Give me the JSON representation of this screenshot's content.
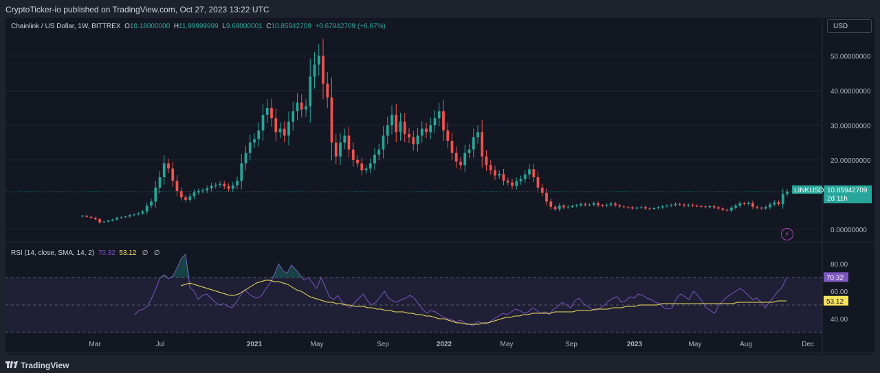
{
  "header": {
    "published": "CryptoTicker-io published on TradingView.com, Oct 27, 2023 13:22 UTC"
  },
  "legend": {
    "symbol": "Chainlink / US Dollar, 1W, BITTREX",
    "open_label": "O",
    "open": "10.18000000",
    "high_label": "H",
    "high": "11.99999999",
    "low_label": "L",
    "low": "9.69000001",
    "close_label": "C",
    "close": "10.85942709",
    "change": "+0.67942709 (+6.67%)"
  },
  "currency_button": "USD",
  "rsi_legend": {
    "label": "RSI (14, close, SMA, 14, 2)",
    "rsi": "70.32",
    "sma": "53.12",
    "extra1": "∅",
    "extra2": "∅"
  },
  "footer": {
    "brand": "TradingView"
  },
  "colors": {
    "up": "#26a69a",
    "down": "#ef5350",
    "rsi_line": "#7e57c2",
    "rsi_ma": "#f7e35a",
    "background": "#131722"
  },
  "icons": {
    "bolt": "lightning-icon",
    "logo": "tradingview-logo-icon"
  },
  "chart_data": [
    {
      "type": "candlestick",
      "series_name": "LINKUSD",
      "last_price_label": "10.85942709",
      "countdown": "2d 11h",
      "y_axis": {
        "min": -4,
        "max": 55,
        "ticks": [
          "50.00000000",
          "40.00000000",
          "30.00000000",
          "20.00000000",
          "0.00000000"
        ]
      },
      "x_tick_labels": [
        {
          "label": "Mar",
          "bold": false
        },
        {
          "label": "Jul",
          "bold": false
        },
        {
          "label": "2021",
          "bold": true
        },
        {
          "label": "May",
          "bold": false
        },
        {
          "label": "Sep",
          "bold": false
        },
        {
          "label": "2022",
          "bold": true
        },
        {
          "label": "May",
          "bold": false
        },
        {
          "label": "Sep",
          "bold": false
        },
        {
          "label": "2023",
          "bold": true
        },
        {
          "label": "May",
          "bold": false
        },
        {
          "label": "Aug",
          "bold": false
        },
        {
          "label": "Dec",
          "bold": false
        }
      ],
      "weekly_closes": [
        3.9,
        3.6,
        3.3,
        2.9,
        2.0,
        2.2,
        2.5,
        2.8,
        3.3,
        3.5,
        3.7,
        4.1,
        4.3,
        4.6,
        5.1,
        6.8,
        8.0,
        12.0,
        15.0,
        19.0,
        17.5,
        14.0,
        11.0,
        9.2,
        8.5,
        9.5,
        10.6,
        11.0,
        11.2,
        11.8,
        12.5,
        12.8,
        13.1,
        12.4,
        11.7,
        12.7,
        14.0,
        19.0,
        22.0,
        25.0,
        26.0,
        28.5,
        33.0,
        35.0,
        32.0,
        28.0,
        29.0,
        27.0,
        31.0,
        34.0,
        36.5,
        34.5,
        35.5,
        44.0,
        47.5,
        50.0,
        42.0,
        38.0,
        25.0,
        21.0,
        25.0,
        27.0,
        23.0,
        20.0,
        19.0,
        17.0,
        17.5,
        19.0,
        21.5,
        23.0,
        27.0,
        30.0,
        33.0,
        28.0,
        31.0,
        27.5,
        26.5,
        24.5,
        27.0,
        29.0,
        28.0,
        30.0,
        32.0,
        34.0,
        28.5,
        25.5,
        22.0,
        19.5,
        18.5,
        22.0,
        23.0,
        26.5,
        28.0,
        21.0,
        18.5,
        17.0,
        15.5,
        16.0,
        14.0,
        13.5,
        12.5,
        13.8,
        14.5,
        15.8,
        17.3,
        15.0,
        12.0,
        10.5,
        8.0,
        6.5,
        5.8,
        6.8,
        6.3,
        6.5,
        6.7,
        6.9,
        7.3,
        7.0,
        7.1,
        7.5,
        6.9,
        6.8,
        7.0,
        7.4,
        6.9,
        6.6,
        6.4,
        6.3,
        6.0,
        6.2,
        6.4,
        6.0,
        5.9,
        6.1,
        6.3,
        6.6,
        6.8,
        7.0,
        7.3,
        7.1,
        6.8,
        7.0,
        6.8,
        6.7,
        6.6,
        6.4,
        6.7,
        6.3,
        6.0,
        5.6,
        5.4,
        6.2,
        6.8,
        7.5,
        7.3,
        7.6,
        6.5,
        6.2,
        6.0,
        6.4,
        7.2,
        7.8,
        7.3,
        10.18,
        10.86
      ]
    },
    {
      "type": "line",
      "title": "RSI (14, close, SMA, 14, 2)",
      "y_axis": {
        "min": 24,
        "max": 88,
        "ticks": [
          "80.00",
          "60.00",
          "40.00"
        ],
        "band": [
          30,
          70
        ]
      },
      "series": [
        {
          "name": "RSI",
          "last_value": "70.32",
          "values": [
            43,
            46,
            47,
            49,
            55,
            62,
            70,
            72,
            69,
            71,
            77,
            84,
            87,
            63,
            60,
            54,
            57,
            58,
            55,
            52,
            50,
            51,
            49,
            48,
            52,
            57,
            61,
            58,
            56,
            55,
            57,
            62,
            66,
            72,
            80,
            75,
            73,
            79,
            76,
            72,
            68,
            70,
            66,
            62,
            70,
            63,
            56,
            54,
            57,
            52,
            50,
            48,
            52,
            55,
            58,
            53,
            50,
            52,
            56,
            60,
            55,
            53,
            52,
            54,
            55,
            57,
            55,
            51,
            47,
            44,
            46,
            45,
            43,
            41,
            40,
            39,
            38,
            39,
            37,
            36,
            35,
            38,
            37,
            36,
            38,
            40,
            42,
            44,
            43,
            45,
            47,
            46,
            44,
            45,
            48,
            46,
            44,
            45,
            43,
            47,
            49,
            52,
            50,
            48,
            53,
            55,
            51,
            49,
            47,
            46,
            48,
            50,
            53,
            55,
            56,
            52,
            53,
            56,
            55,
            58,
            57,
            55,
            54,
            52,
            51,
            48,
            47,
            48,
            55,
            58,
            56,
            54,
            60,
            57,
            53,
            48,
            46,
            44,
            50,
            53,
            56,
            58,
            60,
            62,
            60,
            57,
            54,
            55,
            52,
            48,
            52,
            56,
            60,
            63,
            70
          ]
        },
        {
          "name": "SMA",
          "last_value": "53.12",
          "values": [
            64,
            65,
            66,
            65,
            64,
            63,
            62,
            61,
            60,
            59,
            58,
            57,
            57,
            58,
            60,
            62,
            64,
            66,
            67,
            68,
            68,
            67,
            67,
            66,
            65,
            63,
            61,
            60,
            58,
            56,
            55,
            54,
            53,
            52,
            52,
            51,
            51,
            50,
            50,
            49,
            49,
            49,
            48,
            48,
            47,
            47,
            46,
            46,
            45,
            45,
            45,
            44,
            44,
            43,
            43,
            42,
            42,
            41,
            40,
            40,
            39,
            38,
            37,
            37,
            36,
            36,
            36,
            36,
            37,
            37,
            38,
            39,
            40,
            41,
            41,
            42,
            42,
            43,
            43,
            44,
            44,
            44,
            44,
            44,
            45,
            45,
            45,
            45,
            45,
            46,
            46,
            46,
            46,
            47,
            47,
            47,
            47,
            48,
            48,
            48,
            49,
            49,
            49,
            50,
            50,
            50,
            50,
            50,
            51,
            51,
            51,
            51,
            51,
            51,
            51,
            51,
            51,
            51,
            51,
            51,
            51,
            51,
            51,
            51,
            51,
            52,
            52,
            52,
            52,
            52,
            52,
            52,
            52,
            52,
            53,
            53,
            53
          ]
        }
      ]
    }
  ]
}
